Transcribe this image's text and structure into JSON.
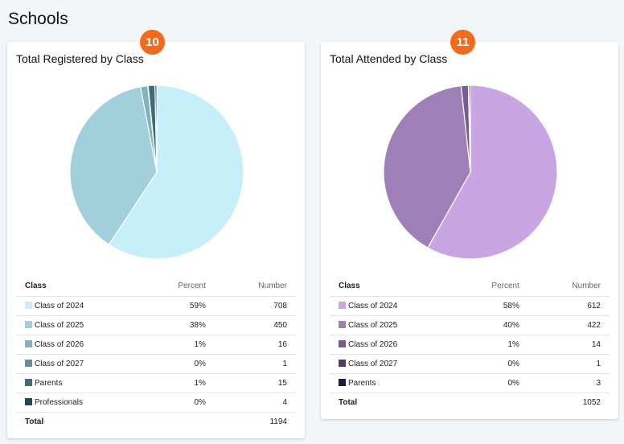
{
  "page": {
    "title": "Schools"
  },
  "cards": [
    {
      "badge": "10",
      "title": "Total Registered by Class",
      "headers": {
        "class": "Class",
        "percent": "Percent",
        "number": "Number"
      },
      "rows": [
        {
          "label": "Class of 2024",
          "percent": "59%",
          "number": "708",
          "color": "#c6effa"
        },
        {
          "label": "Class of 2025",
          "percent": "38%",
          "number": "450",
          "color": "#a1cfdb"
        },
        {
          "label": "Class of 2026",
          "percent": "1%",
          "number": "16",
          "color": "#80b3bf"
        },
        {
          "label": "Class of 2027",
          "percent": "0%",
          "number": "1",
          "color": "#5e929e"
        },
        {
          "label": "Parents",
          "percent": "1%",
          "number": "15",
          "color": "#3a6e78"
        },
        {
          "label": "Professionals",
          "percent": "0%",
          "number": "4",
          "color": "#1a4a52"
        }
      ],
      "total": {
        "label": "Total",
        "number": "1194"
      }
    },
    {
      "badge": "11",
      "title": "Total Attended by Class",
      "headers": {
        "class": "Class",
        "percent": "Percent",
        "number": "Number"
      },
      "rows": [
        {
          "label": "Class of 2024",
          "percent": "58%",
          "number": "612",
          "color": "#c9a5e3"
        },
        {
          "label": "Class of 2025",
          "percent": "40%",
          "number": "422",
          "color": "#9e7fb8"
        },
        {
          "label": "Class of 2026",
          "percent": "1%",
          "number": "14",
          "color": "#7a5a95"
        },
        {
          "label": "Class of 2027",
          "percent": "0%",
          "number": "1",
          "color": "#563a6e"
        },
        {
          "label": "Parents",
          "percent": "0%",
          "number": "3",
          "color": "#2d1440"
        }
      ],
      "total": {
        "label": "Total",
        "number": "1052"
      }
    }
  ],
  "chart_data": [
    {
      "type": "pie",
      "title": "Total Registered by Class",
      "categories": [
        "Class of 2024",
        "Class of 2025",
        "Class of 2026",
        "Class of 2027",
        "Parents",
        "Professionals"
      ],
      "values": [
        708,
        450,
        16,
        1,
        15,
        4
      ],
      "colors": [
        "#c6effa",
        "#a1cfdb",
        "#80b3bf",
        "#5e929e",
        "#3a6e78",
        "#1a4a52"
      ]
    },
    {
      "type": "pie",
      "title": "Total Attended by Class",
      "categories": [
        "Class of 2024",
        "Class of 2025",
        "Class of 2026",
        "Class of 2027",
        "Parents"
      ],
      "values": [
        612,
        422,
        14,
        1,
        3
      ],
      "colors": [
        "#c9a5e3",
        "#9e7fb8",
        "#7a5a95",
        "#563a6e",
        "#2d1440"
      ]
    }
  ]
}
